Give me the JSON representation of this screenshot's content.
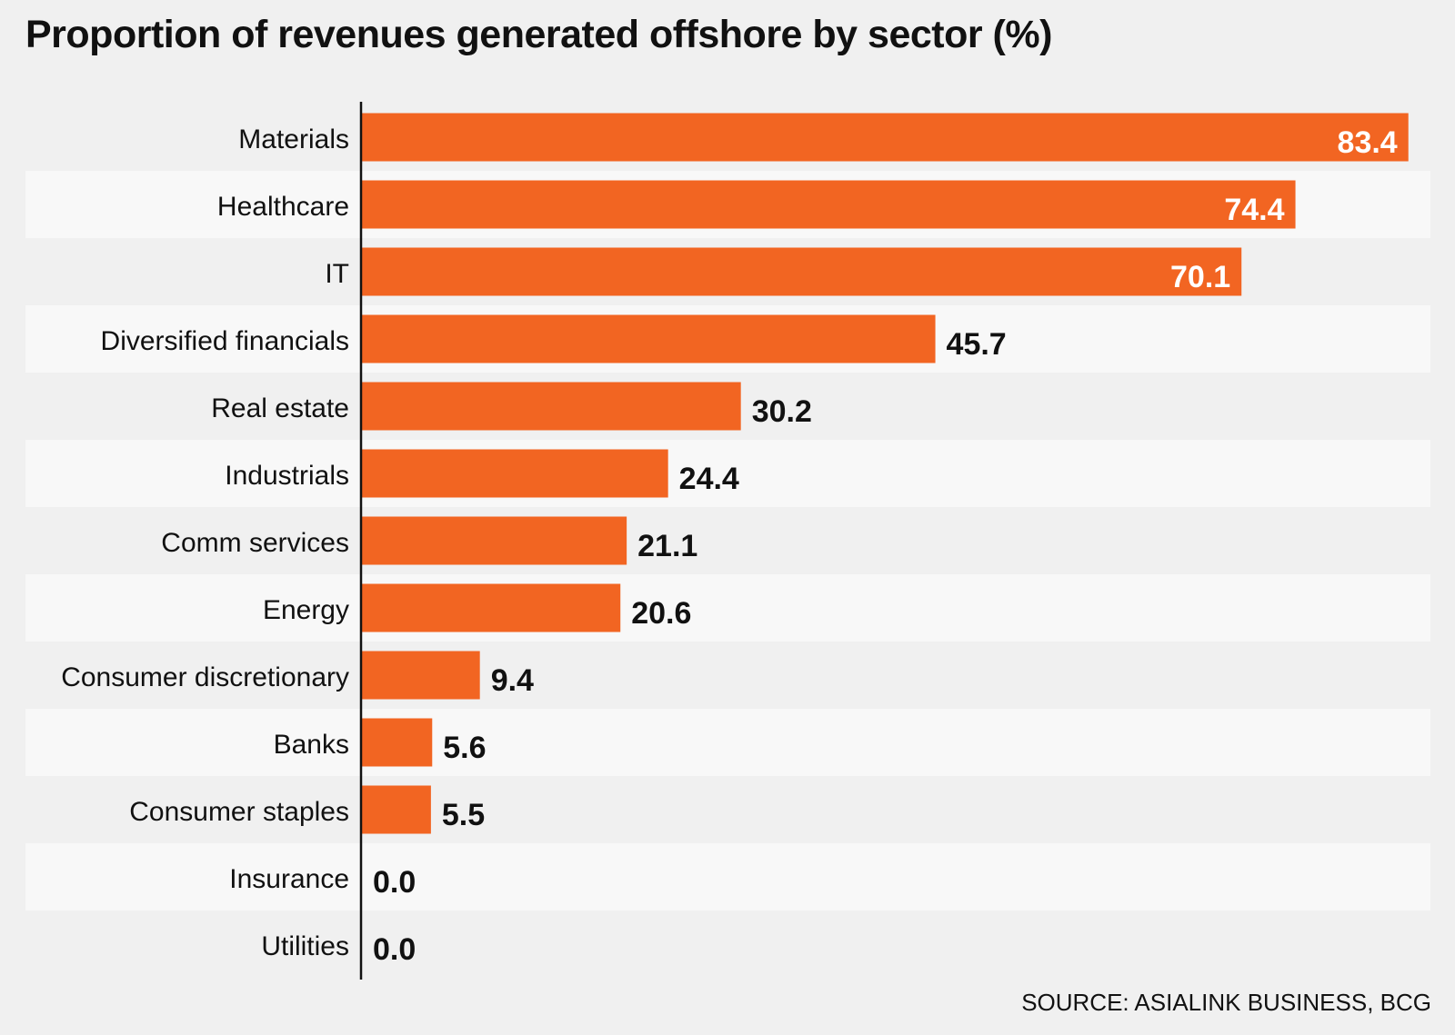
{
  "title": "Proportion of revenues generated offshore by sector (%)",
  "source": "SOURCE: ASIALINK BUSINESS, BCG",
  "colors": {
    "bar": "#f26522",
    "row_light": "#f8f8f8",
    "row_dark": "#f0f0f0",
    "axis": "#111111",
    "label_dark": "#111111",
    "label_light": "#ffffff"
  },
  "chart_data": {
    "type": "bar",
    "orientation": "horizontal",
    "categories": [
      "Materials",
      "Healthcare",
      "IT",
      "Diversified financials",
      "Real estate",
      "Industrials",
      "Comm services",
      "Energy",
      "Consumer discretionary",
      "Banks",
      "Consumer staples",
      "Insurance",
      "Utilities"
    ],
    "values": [
      83.4,
      74.4,
      70.1,
      45.7,
      30.2,
      24.4,
      21.1,
      20.6,
      9.4,
      5.6,
      5.5,
      0.0,
      0.0
    ],
    "value_labels": [
      "83.4",
      "74.4",
      "70.1",
      "45.7",
      "30.2",
      "24.4",
      "21.1",
      "20.6",
      "9.4",
      "5.6",
      "5.5",
      "0.0",
      "0.0"
    ],
    "title": "Proportion of revenues generated offshore by sector (%)",
    "xlim": [
      0,
      84
    ],
    "grid": false,
    "legend": "none"
  }
}
